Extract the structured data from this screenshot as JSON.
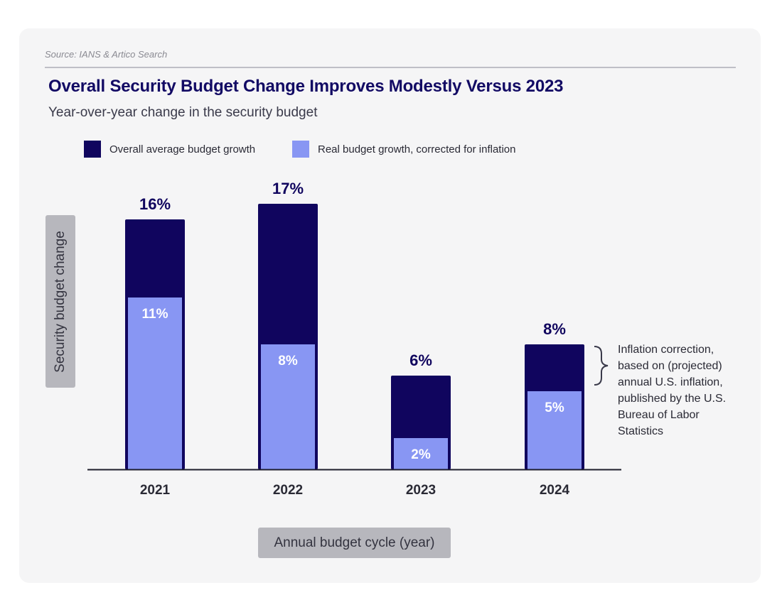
{
  "source": "Source: IANS & Artico Search",
  "chart_data": {
    "type": "bar",
    "title": "Overall Security Budget Change Improves Modestly Versus 2023",
    "subtitle": "Year-over-year change in the security budget",
    "categories": [
      "2021",
      "2022",
      "2023",
      "2024"
    ],
    "series": [
      {
        "name": "Overall average budget growth",
        "values": [
          16,
          17,
          6,
          8
        ],
        "color": "#10055e"
      },
      {
        "name": "Real budget growth, corrected for inflation",
        "values": [
          11,
          8,
          2,
          5
        ],
        "color": "#8896f3"
      }
    ],
    "value_labels": {
      "overall": [
        "16%",
        "17%",
        "6%",
        "8%"
      ],
      "real": [
        "11%",
        "8%",
        "2%",
        "5%"
      ]
    },
    "xlabel": "Annual budget cycle (year)",
    "ylabel": "Security budget change",
    "ylim": [
      0,
      17
    ],
    "legend_position": "top",
    "grid": false,
    "annotation": "Inflation correction, based on (projected) annual U.S. inflation, published by the U.S. Bureau of Labor Statistics"
  }
}
